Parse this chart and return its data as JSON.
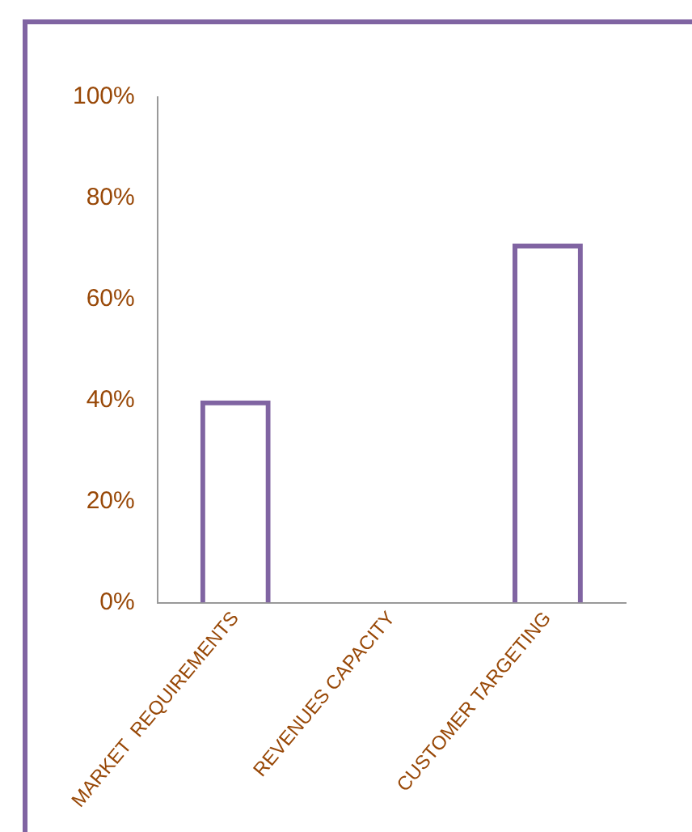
{
  "chart_data": {
    "type": "bar",
    "categories": [
      "MARKET  REQUIREMENTS",
      "REVENUES CAPACITY",
      "CUSTOMER TARGETING"
    ],
    "values": [
      40,
      0,
      71
    ],
    "color": "#8064a2",
    "ylim": [
      0,
      100
    ],
    "yticks": [
      {
        "value": 0,
        "label": "0%"
      },
      {
        "value": 20,
        "label": "20%"
      },
      {
        "value": 40,
        "label": "40%"
      },
      {
        "value": 60,
        "label": "60%"
      },
      {
        "value": 80,
        "label": "80%"
      },
      {
        "value": 100,
        "label": "100%"
      }
    ],
    "grid": false,
    "legend": false
  }
}
